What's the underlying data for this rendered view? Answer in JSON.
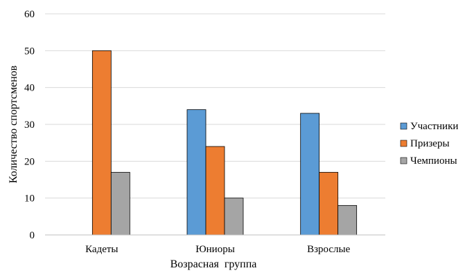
{
  "chart_data": {
    "type": "bar",
    "title": "",
    "xlabel": "Возрасная  группа",
    "ylabel": "Количество спортсменов",
    "categories": [
      "Кадеты",
      "Юниоры",
      "Взрослые"
    ],
    "series": [
      {
        "name": "Участники",
        "color": "#5B9BD5",
        "values": [
          null,
          34,
          33
        ]
      },
      {
        "name": "Призеры",
        "color": "#ED7D31",
        "values": [
          50,
          24,
          17
        ]
      },
      {
        "name": "Чемпионы",
        "color": "#A5A5A5",
        "values": [
          17,
          10,
          8
        ]
      }
    ],
    "ylim": [
      0,
      60
    ],
    "yticks": [
      0,
      10,
      20,
      30,
      40,
      50,
      60
    ],
    "grid": true,
    "legend_position": "right"
  }
}
